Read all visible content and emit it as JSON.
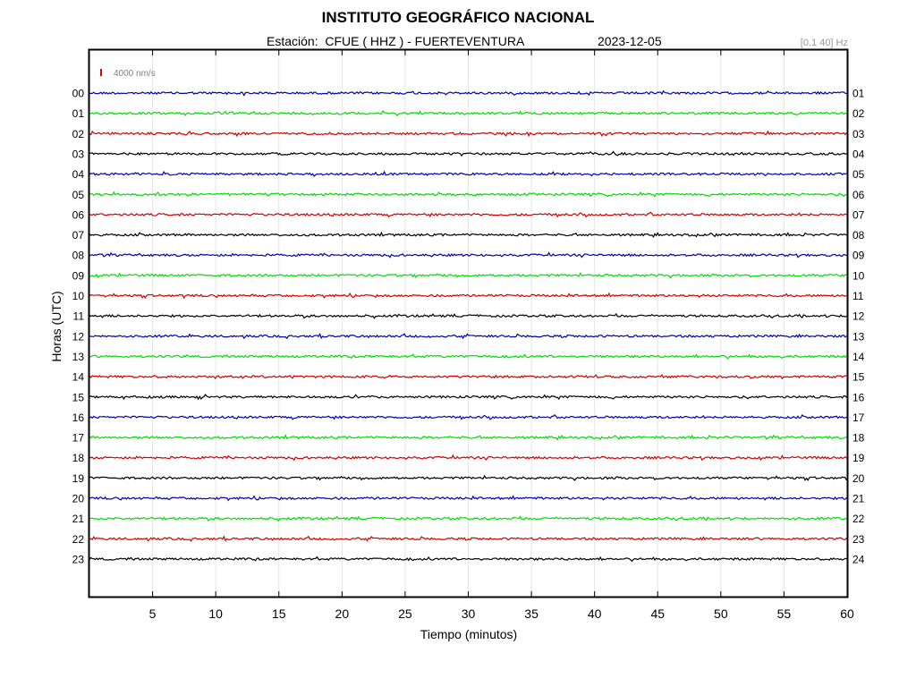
{
  "header": {
    "title": "INSTITUTO GEOGRÁFICO NACIONAL",
    "station": "Estación:  CFUE ( HHZ ) - FUERTEVENTURA",
    "date": "2023-12-05",
    "band": "[0.1 40] Hz"
  },
  "chart_data": {
    "type": "line",
    "title": "INSTITUTO GEOGRÁFICO NACIONAL",
    "xlabel": "Tiempo (minutos)",
    "ylabel": "Horas (UTC)",
    "xlim": [
      0,
      60
    ],
    "x_ticks": [
      5,
      10,
      15,
      20,
      25,
      30,
      35,
      40,
      45,
      50,
      55,
      60
    ],
    "left_hour_labels": [
      "00",
      "01",
      "02",
      "03",
      "04",
      "05",
      "06",
      "07",
      "08",
      "09",
      "10",
      "11",
      "12",
      "13",
      "14",
      "15",
      "16",
      "17",
      "18",
      "19",
      "20",
      "21",
      "22",
      "23"
    ],
    "right_hour_labels": [
      "01",
      "02",
      "03",
      "04",
      "05",
      "06",
      "07",
      "08",
      "09",
      "10",
      "11",
      "12",
      "13",
      "14",
      "15",
      "16",
      "17",
      "18",
      "19",
      "20",
      "21",
      "22",
      "23",
      "24"
    ],
    "trace_colors": [
      "#0000b0",
      "#00dd00",
      "#d00000",
      "#000000"
    ],
    "scale_bar": {
      "label": "4000 nm/s",
      "color": "#dd0000"
    },
    "grid": true
  }
}
